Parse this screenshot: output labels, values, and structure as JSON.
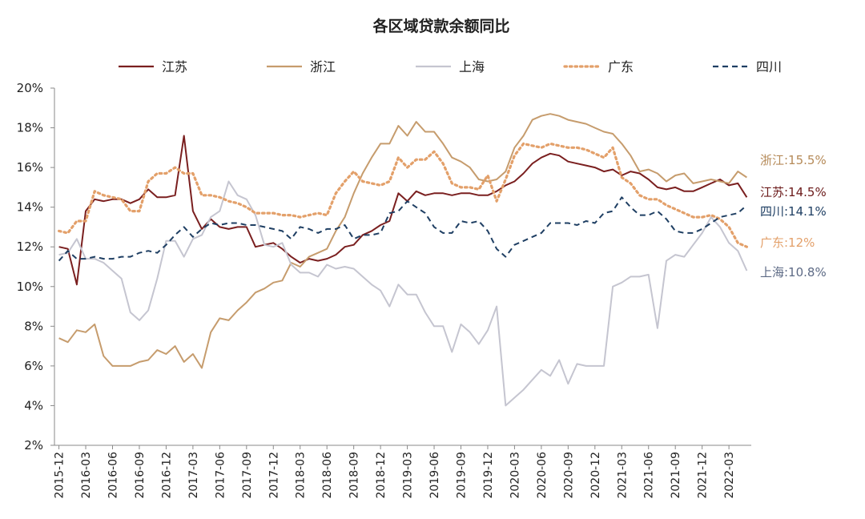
{
  "chart_data": {
    "type": "line",
    "title": "各区域贷款余额同比",
    "xlabel": "",
    "ylabel": "",
    "ylim": [
      0.02,
      0.2
    ],
    "y_ticks": [
      "2%",
      "4%",
      "6%",
      "8%",
      "10%",
      "12%",
      "14%",
      "16%",
      "18%",
      "20%"
    ],
    "x_ticks": [
      "2015-12",
      "2016-03",
      "2016-06",
      "2016-09",
      "2016-12",
      "2017-03",
      "2017-06",
      "2017-09",
      "2017-12",
      "2018-03",
      "2018-06",
      "2018-09",
      "2018-12",
      "2019-03",
      "2019-06",
      "2019-09",
      "2019-12",
      "2020-03",
      "2020-06",
      "2020-09",
      "2020-12",
      "2021-03",
      "2021-06",
      "2021-09",
      "2021-12",
      "2022-03"
    ],
    "x": [
      "2015-12",
      "2016-01",
      "2016-02",
      "2016-03",
      "2016-04",
      "2016-05",
      "2016-06",
      "2016-07",
      "2016-08",
      "2016-09",
      "2016-10",
      "2016-11",
      "2016-12",
      "2017-01",
      "2017-02",
      "2017-03",
      "2017-04",
      "2017-05",
      "2017-06",
      "2017-07",
      "2017-08",
      "2017-09",
      "2017-10",
      "2017-11",
      "2017-12",
      "2018-01",
      "2018-02",
      "2018-03",
      "2018-04",
      "2018-05",
      "2018-06",
      "2018-07",
      "2018-08",
      "2018-09",
      "2018-10",
      "2018-11",
      "2018-12",
      "2019-01",
      "2019-02",
      "2019-03",
      "2019-04",
      "2019-05",
      "2019-06",
      "2019-07",
      "2019-08",
      "2019-09",
      "2019-10",
      "2019-11",
      "2019-12",
      "2020-01",
      "2020-02",
      "2020-03",
      "2020-04",
      "2020-05",
      "2020-06",
      "2020-07",
      "2020-08",
      "2020-09",
      "2020-10",
      "2020-11",
      "2020-12",
      "2021-01",
      "2021-02",
      "2021-03",
      "2021-04",
      "2021-05",
      "2021-06",
      "2021-07",
      "2021-08",
      "2021-09",
      "2021-10",
      "2021-11",
      "2021-12",
      "2022-01",
      "2022-02",
      "2022-03",
      "2022-04",
      "2022-05"
    ],
    "legend_position": "top",
    "grid": false,
    "series": [
      {
        "name": "江苏",
        "color": "#7a1f1f",
        "style": "solid",
        "values": [
          0.12,
          0.119,
          0.101,
          0.138,
          0.144,
          0.143,
          0.144,
          0.144,
          0.142,
          0.144,
          0.149,
          0.145,
          0.145,
          0.146,
          0.176,
          0.138,
          0.129,
          0.134,
          0.13,
          0.129,
          0.13,
          0.13,
          0.12,
          0.121,
          0.122,
          0.119,
          0.115,
          0.112,
          0.114,
          0.113,
          0.114,
          0.116,
          0.12,
          0.121,
          0.126,
          0.128,
          0.131,
          0.133,
          0.147,
          0.143,
          0.148,
          0.146,
          0.147,
          0.147,
          0.146,
          0.147,
          0.147,
          0.146,
          0.146,
          0.148,
          0.151,
          0.153,
          0.157,
          0.162,
          0.165,
          0.167,
          0.166,
          0.163,
          0.162,
          0.161,
          0.16,
          0.158,
          0.159,
          0.156,
          0.158,
          0.157,
          0.154,
          0.15,
          0.149,
          0.15,
          0.148,
          0.148,
          0.15,
          0.152,
          0.154,
          0.151,
          0.152,
          0.145
        ]
      },
      {
        "name": "浙江",
        "color": "#c69c6d",
        "style": "solid",
        "values": [
          0.074,
          0.072,
          0.078,
          0.077,
          0.081,
          0.065,
          0.06,
          0.06,
          0.06,
          0.062,
          0.063,
          0.068,
          0.066,
          0.07,
          0.062,
          0.066,
          0.059,
          0.077,
          0.084,
          0.083,
          0.088,
          0.092,
          0.097,
          0.099,
          0.102,
          0.103,
          0.112,
          0.11,
          0.115,
          0.117,
          0.119,
          0.128,
          0.135,
          0.147,
          0.157,
          0.165,
          0.172,
          0.172,
          0.181,
          0.176,
          0.183,
          0.178,
          0.178,
          0.172,
          0.165,
          0.163,
          0.16,
          0.154,
          0.153,
          0.154,
          0.158,
          0.17,
          0.176,
          0.184,
          0.186,
          0.187,
          0.186,
          0.184,
          0.183,
          0.182,
          0.18,
          0.178,
          0.177,
          0.172,
          0.166,
          0.158,
          0.159,
          0.157,
          0.153,
          0.156,
          0.157,
          0.152,
          0.153,
          0.154,
          0.153,
          0.152,
          0.158,
          0.155
        ]
      },
      {
        "name": "上海",
        "color": "#c5c5d0",
        "style": "solid",
        "values": [
          0.116,
          0.117,
          0.124,
          0.114,
          0.114,
          0.112,
          0.108,
          0.104,
          0.087,
          0.083,
          0.088,
          0.104,
          0.123,
          0.123,
          0.115,
          0.124,
          0.126,
          0.135,
          0.138,
          0.153,
          0.146,
          0.144,
          0.136,
          0.121,
          0.12,
          0.122,
          0.111,
          0.107,
          0.107,
          0.105,
          0.111,
          0.109,
          0.11,
          0.109,
          0.105,
          0.101,
          0.098,
          0.09,
          0.101,
          0.096,
          0.096,
          0.087,
          0.08,
          0.08,
          0.067,
          0.081,
          0.077,
          0.071,
          0.078,
          0.09,
          0.04,
          0.044,
          0.048,
          0.053,
          0.058,
          0.055,
          0.063,
          0.051,
          0.061,
          0.06,
          0.06,
          0.06,
          0.1,
          0.102,
          0.105,
          0.105,
          0.106,
          0.079,
          0.113,
          0.116,
          0.115,
          0.121,
          0.127,
          0.135,
          0.13,
          0.122,
          0.118,
          0.108
        ]
      },
      {
        "name": "广东",
        "color": "#e3a06a",
        "style": "dotted",
        "values": [
          0.128,
          0.127,
          0.133,
          0.133,
          0.148,
          0.146,
          0.145,
          0.144,
          0.138,
          0.138,
          0.153,
          0.157,
          0.157,
          0.16,
          0.157,
          0.157,
          0.146,
          0.146,
          0.145,
          0.143,
          0.142,
          0.14,
          0.137,
          0.137,
          0.137,
          0.136,
          0.136,
          0.135,
          0.136,
          0.137,
          0.136,
          0.147,
          0.153,
          0.158,
          0.153,
          0.152,
          0.151,
          0.153,
          0.165,
          0.16,
          0.164,
          0.164,
          0.168,
          0.162,
          0.152,
          0.15,
          0.15,
          0.149,
          0.156,
          0.143,
          0.154,
          0.166,
          0.172,
          0.171,
          0.17,
          0.172,
          0.171,
          0.17,
          0.17,
          0.169,
          0.167,
          0.165,
          0.17,
          0.155,
          0.152,
          0.146,
          0.144,
          0.144,
          0.141,
          0.139,
          0.137,
          0.135,
          0.135,
          0.136,
          0.134,
          0.13,
          0.122,
          0.12
        ]
      },
      {
        "name": "四川",
        "color": "#1f3f63",
        "style": "dashed",
        "values": [
          0.113,
          0.118,
          0.114,
          0.114,
          0.115,
          0.114,
          0.114,
          0.115,
          0.115,
          0.117,
          0.118,
          0.117,
          0.121,
          0.126,
          0.13,
          0.125,
          0.129,
          0.132,
          0.131,
          0.132,
          0.132,
          0.131,
          0.131,
          0.13,
          0.129,
          0.128,
          0.124,
          0.13,
          0.129,
          0.127,
          0.129,
          0.129,
          0.131,
          0.124,
          0.126,
          0.126,
          0.127,
          0.137,
          0.138,
          0.143,
          0.14,
          0.137,
          0.13,
          0.127,
          0.127,
          0.133,
          0.132,
          0.133,
          0.128,
          0.119,
          0.115,
          0.121,
          0.123,
          0.125,
          0.127,
          0.132,
          0.132,
          0.132,
          0.131,
          0.133,
          0.132,
          0.137,
          0.138,
          0.145,
          0.14,
          0.136,
          0.136,
          0.138,
          0.134,
          0.128,
          0.127,
          0.127,
          0.129,
          0.132,
          0.135,
          0.136,
          0.137,
          0.141
        ]
      }
    ],
    "end_labels": [
      {
        "series": "浙江",
        "text": "浙江:15.5%",
        "color": "#b58a58"
      },
      {
        "series": "江苏",
        "text": "江苏:14.5%",
        "color": "#6b1a1a"
      },
      {
        "series": "四川",
        "text": "四川:14.1%",
        "color": "#1f3f63"
      },
      {
        "series": "广东",
        "text": "广东:12%",
        "color": "#e3a06a"
      },
      {
        "series": "上海",
        "text": "上海:10.8%",
        "color": "#5d6a85"
      }
    ]
  }
}
